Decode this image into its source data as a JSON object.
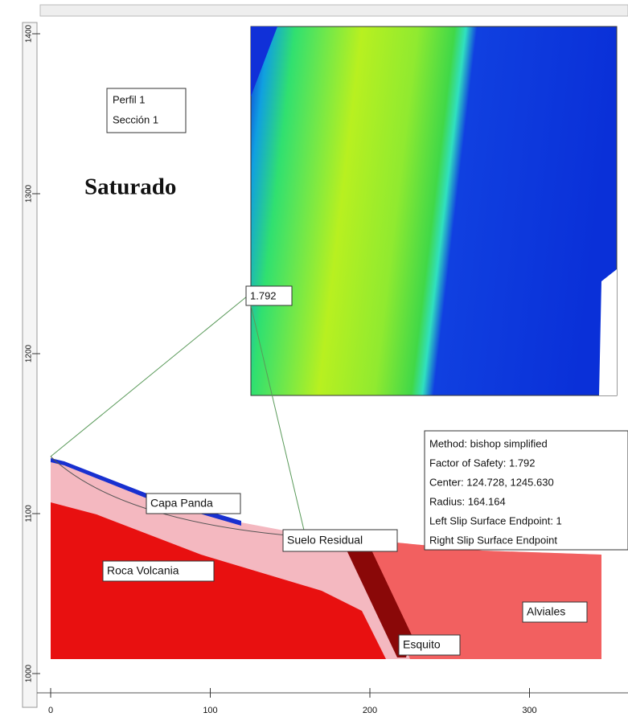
{
  "profile_box": {
    "line1": "Perfil 1",
    "line2": "Sección 1"
  },
  "title": "Saturado",
  "slip_label": "1.792",
  "info": [
    "Method: bishop simplified",
    "Factor of Safety: 1.792",
    "Center: 124.728, 1245.630",
    "Radius: 164.164",
    "Left Slip Surface Endpoint: 1",
    "Right Slip Surface Endpoint"
  ],
  "materials": {
    "capa": "Capa Panda",
    "suelo": "Suelo Residual",
    "roca": "Roca Volcania",
    "alviales": "Alviales",
    "esquito": "Esquito"
  },
  "x_axis": {
    "ticks": [
      "0",
      "100",
      "200",
      "300"
    ]
  },
  "y_axis": {
    "ticks": [
      "1400",
      "1300",
      "1200",
      "1100",
      "1000"
    ]
  }
}
